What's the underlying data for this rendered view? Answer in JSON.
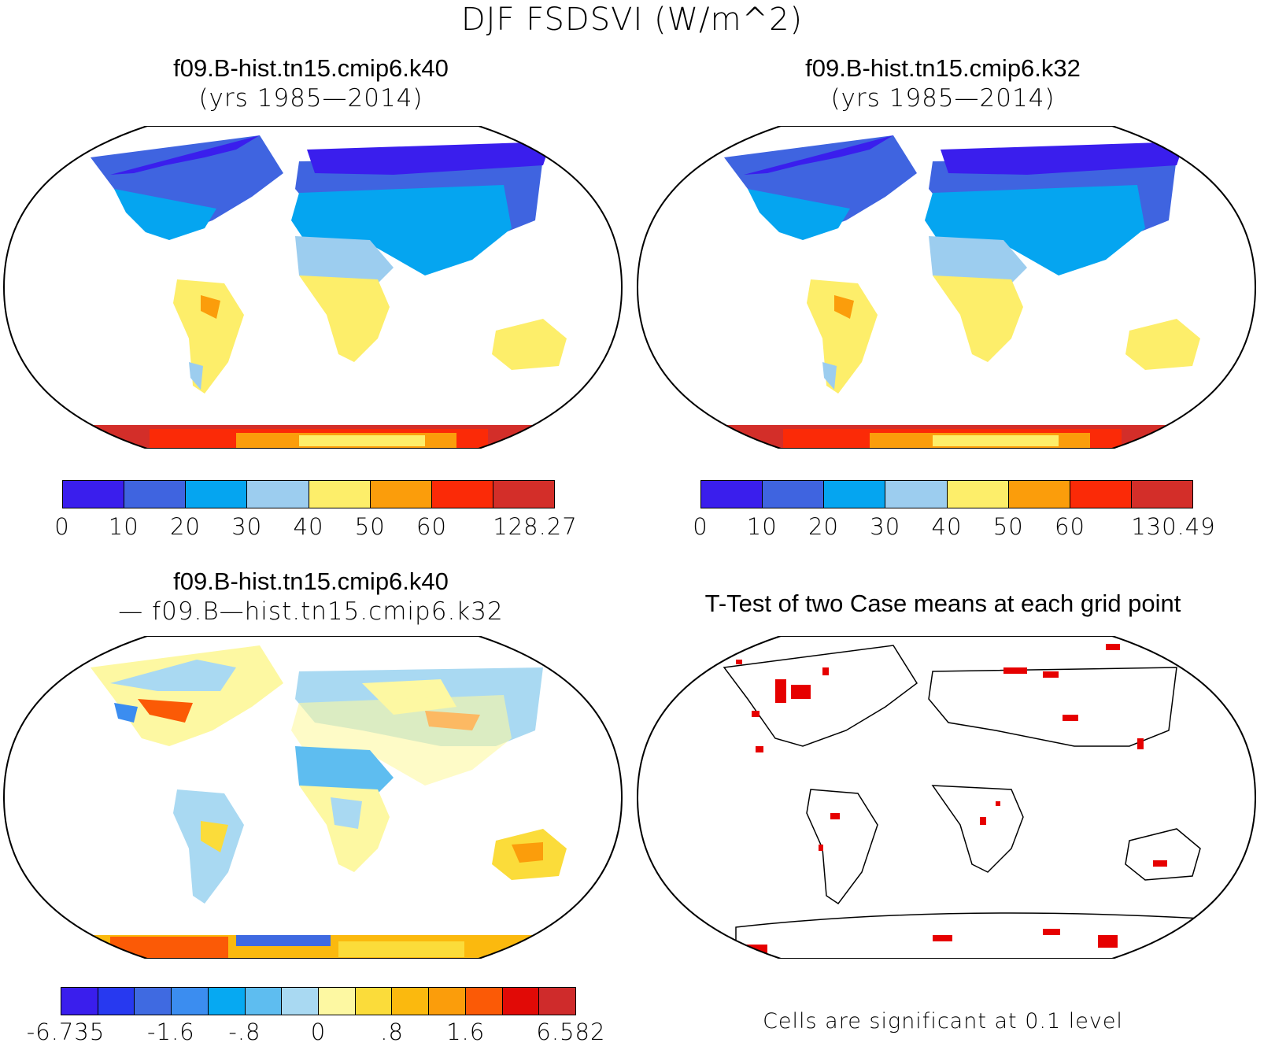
{
  "title": "DJF FSDSVI (W/m^2)",
  "panels": [
    {
      "id": "k40",
      "title": "f09.B-hist.tn15.cmip6.k40",
      "subtitle": "(yrs 1985—2014)"
    },
    {
      "id": "k32",
      "title": "f09.B-hist.tn15.cmip6.k32",
      "subtitle": "(yrs 1985—2014)"
    },
    {
      "id": "diff",
      "title": "f09.B-hist.tn15.cmip6.k40",
      "subtitle": "— f09.B—hist.tn15.cmip6.k32"
    },
    {
      "id": "ttest",
      "title": "T-Test of two Case means at each grid point",
      "subtitle": ""
    }
  ],
  "colorbars": {
    "k40": {
      "colors": [
        "#3a1eed",
        "#3f64e0",
        "#05a5f0",
        "#9ccdef",
        "#fdee6a",
        "#fb9d0b",
        "#fb2a07",
        "#d32e29"
      ],
      "labels": [
        "0",
        "10",
        "20",
        "30",
        "40",
        "50",
        "60",
        "128.27"
      ]
    },
    "k32": {
      "colors": [
        "#3a1eed",
        "#3f64e0",
        "#05a5f0",
        "#9ccdef",
        "#fdee6a",
        "#fb9d0b",
        "#fb2a07",
        "#d32e29"
      ],
      "labels": [
        "0",
        "10",
        "20",
        "30",
        "40",
        "50",
        "60",
        "130.49"
      ]
    },
    "diff": {
      "colors": [
        "#3a1eed",
        "#2739f0",
        "#3f6ae1",
        "#3b8df0",
        "#06a9f2",
        "#5ebdf0",
        "#a9d9f2",
        "#fdf8a2",
        "#fbdc3a",
        "#fbb90e",
        "#fb9d0b",
        "#fb5a06",
        "#e10a06",
        "#cf2b2b"
      ],
      "labels": [
        "-6.735",
        "-1.6",
        "-.8",
        "0",
        ".8",
        "1.6",
        "6.582"
      ]
    }
  },
  "ttest_note": "Cells are significant at 0.1 level",
  "colors": {
    "land_yellow": "#fdee6a",
    "land_blue": "#05a5f0",
    "significant": "#e60000"
  }
}
